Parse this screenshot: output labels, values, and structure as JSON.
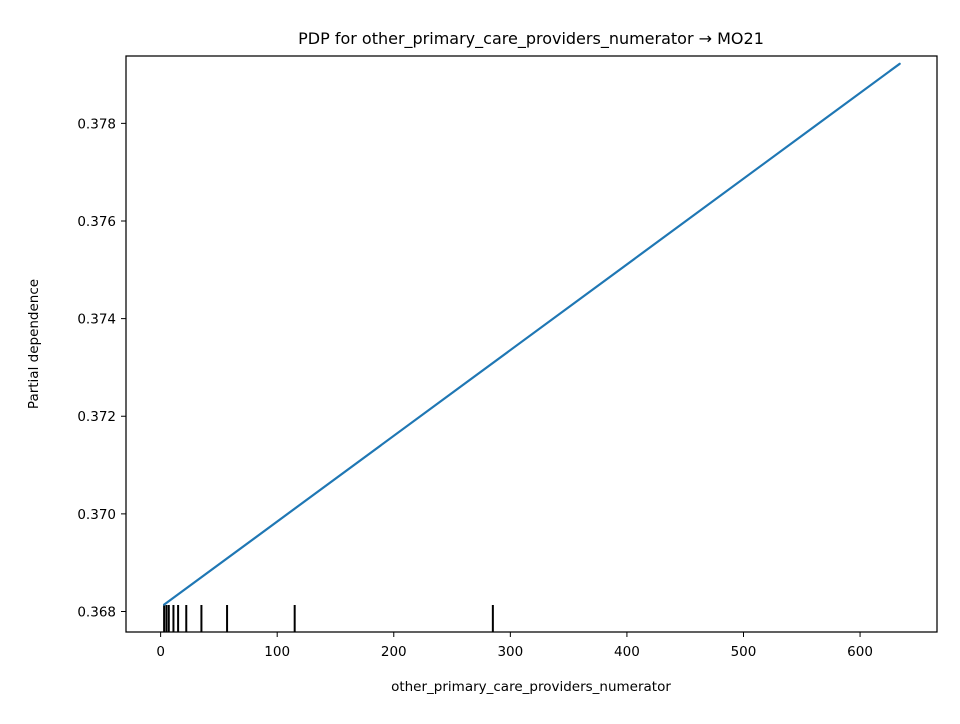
{
  "chart_data": {
    "type": "line",
    "title": "PDP for other_primary_care_providers_numerator → MO21",
    "xlabel": "other_primary_care_providers_numerator",
    "ylabel": "Partial dependence",
    "xlim": [
      -29.7,
      666.0
    ],
    "ylim": [
      0.36758,
      0.37938
    ],
    "xticks": [
      0,
      100,
      200,
      300,
      400,
      500,
      600
    ],
    "xtick_labels": [
      "0",
      "100",
      "200",
      "300",
      "400",
      "500",
      "600"
    ],
    "yticks": [
      0.368,
      0.37,
      0.372,
      0.374,
      0.376,
      0.378
    ],
    "ytick_labels": [
      "0.368",
      "0.370",
      "0.372",
      "0.374",
      "0.376",
      "0.378"
    ],
    "series": [
      {
        "color": "#1f77b4",
        "x": [
          3,
          634
        ],
        "y": [
          0.36814,
          0.37922
        ]
      }
    ],
    "deciles": [
      3,
      5,
      7,
      11,
      15,
      22,
      35,
      57,
      115,
      285
    ],
    "grid": false
  }
}
